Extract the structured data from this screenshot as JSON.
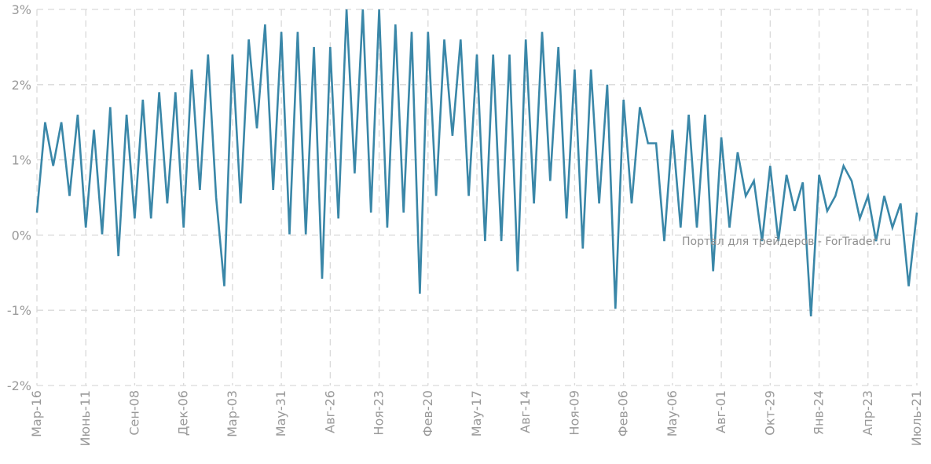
{
  "chart_data": {
    "type": "line",
    "title": "",
    "xlabel": "",
    "ylabel": "",
    "ylim": [
      -2,
      3
    ],
    "y_ticks": [
      "3%",
      "2%",
      "1%",
      "0%",
      "-1%",
      "-2%"
    ],
    "y_tick_values": [
      3,
      2,
      1,
      0,
      -1,
      -2
    ],
    "grid": true,
    "x_tick_labels": [
      "Мар-16",
      "Июнь-11",
      "Сен-08",
      "Дек-06",
      "Мар-03",
      "Мау-31",
      "Авг-26",
      "Ноя-23",
      "Фев-20",
      "Мау-17",
      "Авг-14",
      "Ноя-09",
      "Фев-06",
      "Мау-06",
      "Авг-01",
      "Окт-29",
      "Янв-24",
      "Апр-23",
      "Июль-21"
    ],
    "x_tick_indices": [
      0,
      6,
      12,
      18,
      24,
      30,
      36,
      42,
      48,
      54,
      60,
      66,
      72,
      78,
      84,
      90,
      96,
      102,
      108
    ],
    "series": [
      {
        "color": "#3a87a8",
        "values": [
          0.3,
          1.5,
          0.92,
          1.5,
          0.52,
          1.6,
          0.1,
          1.4,
          0.01,
          1.7,
          -0.28,
          1.6,
          0.22,
          1.8,
          0.22,
          1.9,
          0.42,
          1.9,
          0.1,
          2.2,
          0.6,
          2.4,
          0.5,
          -0.68,
          2.4,
          0.42,
          2.6,
          1.42,
          2.8,
          0.6,
          2.7,
          0.01,
          2.7,
          0.01,
          2.5,
          -0.58,
          2.5,
          0.22,
          3.0,
          0.82,
          3.0,
          0.3,
          3.0,
          0.1,
          2.8,
          0.3,
          2.7,
          -0.78,
          2.7,
          0.52,
          2.6,
          1.32,
          2.6,
          0.52,
          2.4,
          -0.08,
          2.4,
          -0.08,
          2.4,
          -0.48,
          2.6,
          0.42,
          2.7,
          0.72,
          2.5,
          0.22,
          2.2,
          -0.18,
          2.2,
          0.42,
          2.0,
          -0.98,
          1.8,
          0.42,
          1.7,
          1.22,
          1.22,
          -0.08,
          1.4,
          0.1,
          1.6,
          0.1,
          1.6,
          -0.48,
          1.3,
          0.1,
          1.1,
          0.52,
          0.72,
          -0.08,
          0.92,
          -0.08,
          0.8,
          0.32,
          0.7,
          -1.08,
          0.8,
          0.32,
          0.52,
          0.92,
          0.72,
          0.22,
          0.52,
          -0.08,
          0.52,
          0.1,
          0.42,
          -0.68,
          0.3
        ]
      }
    ]
  },
  "watermark": {
    "text": "Портал для трейдеров - ForTrader.ru"
  }
}
